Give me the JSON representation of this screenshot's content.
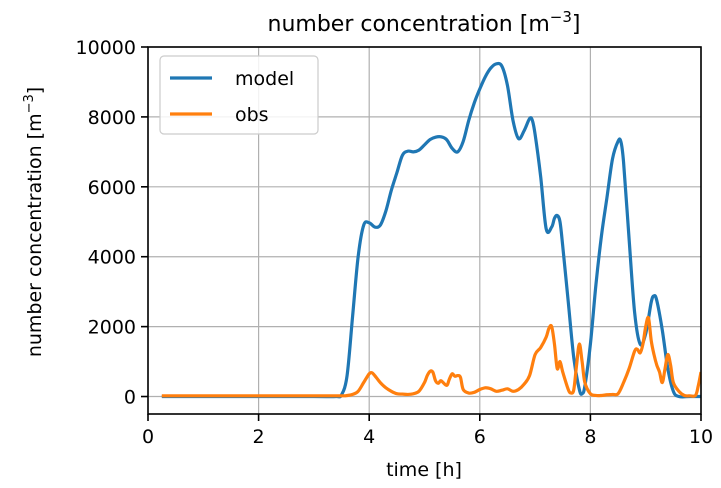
{
  "chart_data": {
    "type": "line",
    "title": "number concentration [m⁻³]",
    "title_main": "number concentration [m",
    "title_sup": "−3",
    "title_end": "]",
    "xlabel": "time [h]",
    "ylabel": "number concentration [m⁻³]",
    "ylabel_main": "number concentration [m",
    "ylabel_sup": "−3",
    "ylabel_end": "]",
    "xlim": [
      0,
      10
    ],
    "ylim": [
      -500,
      10000
    ],
    "xticks": [
      0,
      2,
      4,
      6,
      8,
      10
    ],
    "xtick_labels": [
      "0",
      "2",
      "4",
      "6",
      "8",
      "10"
    ],
    "yticks": [
      0,
      2000,
      4000,
      6000,
      8000,
      10000
    ],
    "ytick_labels": [
      "0",
      "2000",
      "4000",
      "6000",
      "8000",
      "10000"
    ],
    "grid": true,
    "legend_position": "top-left",
    "series": [
      {
        "name": "model",
        "color": "#1f77b4",
        "points": [
          [
            0.25,
            0
          ],
          [
            1.0,
            0
          ],
          [
            2.0,
            0
          ],
          [
            3.0,
            0
          ],
          [
            3.4,
            0
          ],
          [
            3.5,
            50
          ],
          [
            3.6,
            600
          ],
          [
            3.7,
            2300
          ],
          [
            3.8,
            4000
          ],
          [
            3.9,
            4900
          ],
          [
            4.0,
            4970
          ],
          [
            4.1,
            4850
          ],
          [
            4.2,
            4900
          ],
          [
            4.3,
            5300
          ],
          [
            4.4,
            5900
          ],
          [
            4.5,
            6400
          ],
          [
            4.6,
            6900
          ],
          [
            4.7,
            7020
          ],
          [
            4.8,
            7000
          ],
          [
            4.9,
            7050
          ],
          [
            5.0,
            7200
          ],
          [
            5.1,
            7350
          ],
          [
            5.2,
            7420
          ],
          [
            5.3,
            7430
          ],
          [
            5.4,
            7350
          ],
          [
            5.5,
            7100
          ],
          [
            5.6,
            7000
          ],
          [
            5.7,
            7300
          ],
          [
            5.8,
            7900
          ],
          [
            5.9,
            8400
          ],
          [
            6.0,
            8800
          ],
          [
            6.1,
            9150
          ],
          [
            6.2,
            9400
          ],
          [
            6.3,
            9520
          ],
          [
            6.4,
            9450
          ],
          [
            6.5,
            8900
          ],
          [
            6.6,
            7900
          ],
          [
            6.7,
            7380
          ],
          [
            6.8,
            7600
          ],
          [
            6.9,
            7950
          ],
          [
            6.95,
            7900
          ],
          [
            7.0,
            7500
          ],
          [
            7.1,
            6300
          ],
          [
            7.2,
            4800
          ],
          [
            7.3,
            4850
          ],
          [
            7.35,
            5100
          ],
          [
            7.4,
            5180
          ],
          [
            7.45,
            5000
          ],
          [
            7.5,
            4300
          ],
          [
            7.6,
            2700
          ],
          [
            7.7,
            1100
          ],
          [
            7.8,
            200
          ],
          [
            7.85,
            80
          ],
          [
            7.9,
            300
          ],
          [
            8.0,
            1500
          ],
          [
            8.1,
            3200
          ],
          [
            8.2,
            4600
          ],
          [
            8.3,
            5700
          ],
          [
            8.4,
            6800
          ],
          [
            8.5,
            7300
          ],
          [
            8.55,
            7300
          ],
          [
            8.6,
            6700
          ],
          [
            8.7,
            4500
          ],
          [
            8.8,
            2400
          ],
          [
            8.9,
            1500
          ],
          [
            9.0,
            1800
          ],
          [
            9.1,
            2700
          ],
          [
            9.15,
            2880
          ],
          [
            9.2,
            2750
          ],
          [
            9.3,
            1900
          ],
          [
            9.4,
            800
          ],
          [
            9.5,
            150
          ],
          [
            9.6,
            0
          ],
          [
            9.8,
            0
          ],
          [
            10.0,
            0
          ]
        ]
      },
      {
        "name": "obs",
        "color": "#ff7f0e",
        "points": [
          [
            0.25,
            20
          ],
          [
            1.0,
            20
          ],
          [
            2.0,
            20
          ],
          [
            3.0,
            20
          ],
          [
            3.5,
            20
          ],
          [
            3.6,
            30
          ],
          [
            3.7,
            60
          ],
          [
            3.8,
            150
          ],
          [
            3.9,
            400
          ],
          [
            4.0,
            650
          ],
          [
            4.05,
            680
          ],
          [
            4.1,
            600
          ],
          [
            4.2,
            400
          ],
          [
            4.3,
            250
          ],
          [
            4.4,
            150
          ],
          [
            4.5,
            80
          ],
          [
            4.6,
            70
          ],
          [
            4.7,
            60
          ],
          [
            4.8,
            80
          ],
          [
            4.9,
            150
          ],
          [
            5.0,
            400
          ],
          [
            5.05,
            600
          ],
          [
            5.1,
            720
          ],
          [
            5.15,
            700
          ],
          [
            5.2,
            450
          ],
          [
            5.25,
            380
          ],
          [
            5.3,
            450
          ],
          [
            5.4,
            320
          ],
          [
            5.45,
            500
          ],
          [
            5.5,
            650
          ],
          [
            5.55,
            580
          ],
          [
            5.6,
            600
          ],
          [
            5.65,
            550
          ],
          [
            5.7,
            200
          ],
          [
            5.8,
            100
          ],
          [
            5.9,
            120
          ],
          [
            6.0,
            200
          ],
          [
            6.1,
            250
          ],
          [
            6.2,
            220
          ],
          [
            6.3,
            150
          ],
          [
            6.4,
            180
          ],
          [
            6.5,
            220
          ],
          [
            6.6,
            150
          ],
          [
            6.7,
            200
          ],
          [
            6.8,
            350
          ],
          [
            6.9,
            600
          ],
          [
            7.0,
            1200
          ],
          [
            7.1,
            1400
          ],
          [
            7.2,
            1700
          ],
          [
            7.25,
            1950
          ],
          [
            7.3,
            2000
          ],
          [
            7.35,
            1500
          ],
          [
            7.4,
            800
          ],
          [
            7.45,
            1000
          ],
          [
            7.5,
            700
          ],
          [
            7.6,
            200
          ],
          [
            7.65,
            100
          ],
          [
            7.7,
            200
          ],
          [
            7.75,
            900
          ],
          [
            7.8,
            1500
          ],
          [
            7.85,
            1000
          ],
          [
            7.9,
            400
          ],
          [
            8.0,
            80
          ],
          [
            8.1,
            30
          ],
          [
            8.2,
            30
          ],
          [
            8.3,
            50
          ],
          [
            8.4,
            60
          ],
          [
            8.5,
            80
          ],
          [
            8.6,
            400
          ],
          [
            8.7,
            800
          ],
          [
            8.8,
            1300
          ],
          [
            8.85,
            1350
          ],
          [
            8.9,
            1250
          ],
          [
            8.95,
            1500
          ],
          [
            9.0,
            2000
          ],
          [
            9.05,
            2250
          ],
          [
            9.1,
            1600
          ],
          [
            9.15,
            1200
          ],
          [
            9.2,
            900
          ],
          [
            9.25,
            700
          ],
          [
            9.3,
            400
          ],
          [
            9.35,
            800
          ],
          [
            9.4,
            1200
          ],
          [
            9.45,
            900
          ],
          [
            9.5,
            400
          ],
          [
            9.6,
            150
          ],
          [
            9.7,
            30
          ],
          [
            9.8,
            20
          ],
          [
            9.9,
            30
          ],
          [
            9.95,
            300
          ],
          [
            10.0,
            700
          ]
        ]
      }
    ]
  }
}
